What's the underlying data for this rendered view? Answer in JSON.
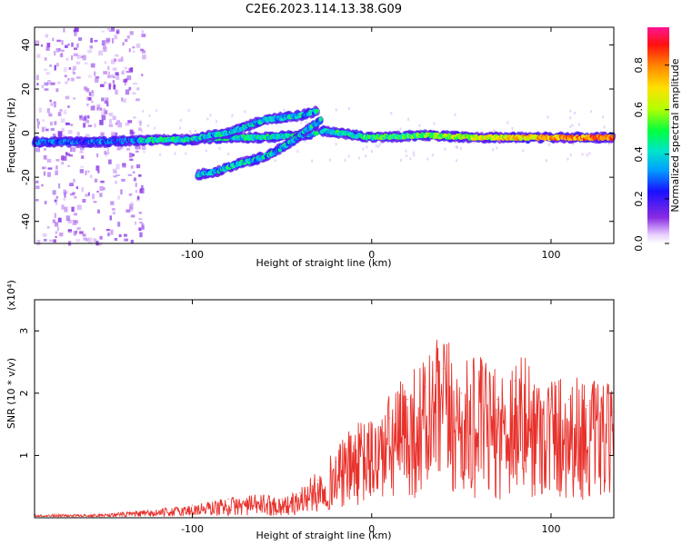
{
  "title": "C2E6.2023.114.13.38.G09",
  "chart_data": [
    {
      "type": "heatmap",
      "xlabel": "Height of straight line (km)",
      "ylabel": "Frequency (Hz)",
      "xlim": [
        -188,
        135
      ],
      "ylim": [
        -50,
        48
      ],
      "xticks": [
        -100,
        0,
        100
      ],
      "yticks": [
        -40,
        -20,
        0,
        20,
        40
      ],
      "colorbar": {
        "label": "Normalized spectral amplitude",
        "range": [
          0.0,
          0.97
        ],
        "ticks": [
          "0.0",
          "0.2",
          "0.4",
          "0.6",
          "0.8"
        ],
        "tick_values": [
          0.0,
          0.2,
          0.4,
          0.6,
          0.8
        ]
      },
      "traces": [
        {
          "x": [
            -188,
            -150,
            -120,
            -100,
            -80,
            -60,
            -40,
            -30
          ],
          "y": [
            -4,
            -4,
            -3,
            -3,
            -2,
            -2,
            -1,
            0
          ]
        },
        {
          "x": [
            -100,
            -90,
            -80,
            -70,
            -60,
            -50,
            -40,
            -30
          ],
          "y": [
            -3,
            -1,
            0,
            3,
            6,
            7,
            8,
            10
          ]
        },
        {
          "x": [
            -97,
            -85,
            -75,
            -65,
            -55,
            -45,
            -35,
            -28
          ],
          "y": [
            -19,
            -17,
            -14,
            -12,
            -9,
            -4,
            2,
            6
          ]
        },
        {
          "x": [
            -28,
            0,
            30,
            60,
            90,
            120,
            135
          ],
          "y": [
            1,
            -2,
            -1,
            -2,
            -2,
            -2,
            -2
          ]
        }
      ]
    },
    {
      "type": "line",
      "xlabel": "Height of straight line (km)",
      "ylabel": "SNR (10 * v/v)",
      "scale_label": "(x10⁴)",
      "xlim": [
        -188,
        135
      ],
      "ylim": [
        0,
        3.5
      ],
      "xticks": [
        -100,
        0,
        100
      ],
      "yticks": [
        1,
        2,
        3
      ],
      "series": [
        {
          "color": "#e8312b",
          "x": [
            -188,
            -160,
            -140,
            -120,
            -100,
            -80,
            -60,
            -50,
            -40,
            -30,
            -20,
            -10,
            0,
            10,
            20,
            30,
            40,
            50,
            60,
            70,
            80,
            90,
            100,
            110,
            120,
            135
          ],
          "y": [
            0.05,
            0.05,
            0.08,
            0.12,
            0.2,
            0.3,
            0.35,
            0.3,
            0.4,
            0.6,
            0.9,
            1.2,
            1.3,
            1.6,
            1.9,
            2.1,
            2.4,
            2.0,
            2.1,
            1.9,
            2.2,
            2.0,
            1.9,
            1.9,
            1.8,
            1.7
          ]
        }
      ]
    }
  ]
}
